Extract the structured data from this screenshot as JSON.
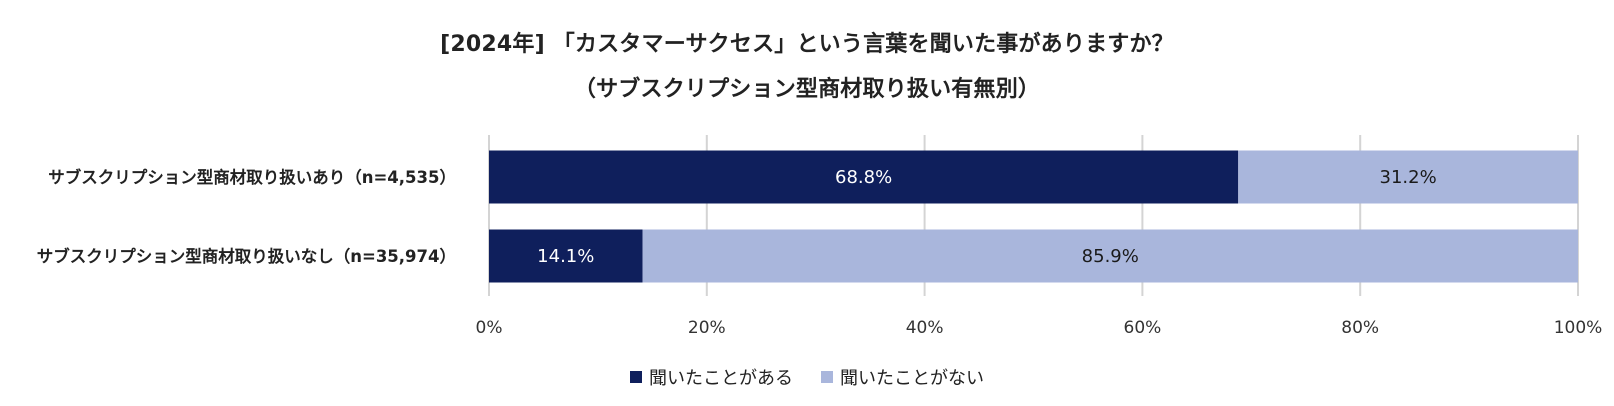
{
  "chart_data": {
    "type": "bar",
    "orientation": "horizontal",
    "stacked": true,
    "normalized_percent": true,
    "title": "[2024年] 「カスタマーサクセス」という言葉を聞いた事がありますか？",
    "subtitle": "（サブスクリプション型商材取り扱い有無別）",
    "categories": [
      "サブスクリプション型商材取り扱いあり（n=4,535）",
      "サブスクリプション型商材取り扱いなし（n=35,974）"
    ],
    "series": [
      {
        "name": "聞いたことがある",
        "color": "#0f1f5c",
        "values": [
          68.8,
          14.1
        ],
        "labels": [
          "68.8%",
          "14.1%"
        ]
      },
      {
        "name": "聞いたことがない",
        "color": "#a9b6dc",
        "values": [
          31.2,
          85.9
        ],
        "labels": [
          "31.2%",
          "85.9%"
        ]
      }
    ],
    "xlim": [
      0,
      100
    ],
    "xticks": [
      "0%",
      "20%",
      "40%",
      "60%",
      "80%",
      "100%"
    ],
    "grid": true,
    "legend_position": "bottom"
  }
}
